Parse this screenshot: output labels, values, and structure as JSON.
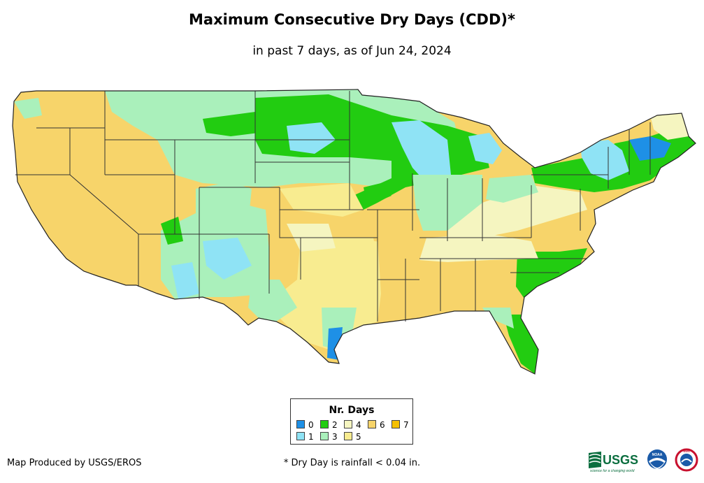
{
  "title": "Maximum Consecutive Dry Days (CDD)*",
  "subtitle": "in past 7 days, as of Jun 24, 2024",
  "legend": {
    "title": "Nr. Days",
    "items": [
      {
        "label": "0",
        "color": "#1e90e6"
      },
      {
        "label": "1",
        "color": "#8fe3f5"
      },
      {
        "label": "2",
        "color": "#22cc11"
      },
      {
        "label": "3",
        "color": "#aaf0bb"
      },
      {
        "label": "4",
        "color": "#f5f5c0"
      },
      {
        "label": "5",
        "color": "#f8ec90"
      },
      {
        "label": "6",
        "color": "#f7d46a"
      },
      {
        "label": "7",
        "color": "#f5c000"
      }
    ]
  },
  "credit": "Map Produced by USGS/EROS",
  "footnote": "* Dry Day is rainfall < 0.04 in.",
  "logos": {
    "usgs": {
      "text": "USGS",
      "tagline": "science for a changing world"
    },
    "noaa": {
      "text": "NOAA"
    },
    "nws": {
      "text": "NWS"
    }
  },
  "colors": {
    "background": "#ffffff",
    "border": "#333333",
    "usgs_green": "#0b6e3f",
    "noaa_blue": "#1a5aa8"
  }
}
